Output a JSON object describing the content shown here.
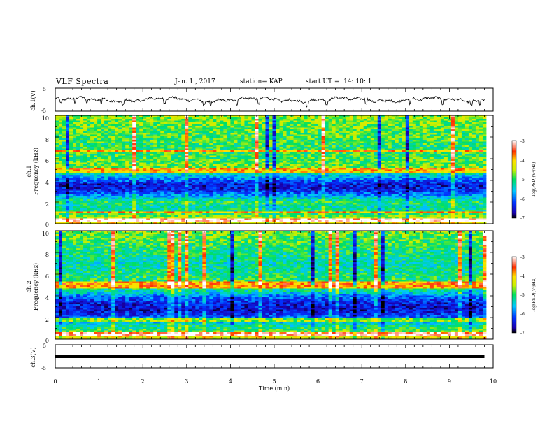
{
  "header": {
    "title": "VLF Spectra",
    "date": "Jan. 1 , 2017",
    "station": "station= KAP",
    "start_time": "start UT =  14: 10: 1"
  },
  "chart_data": [
    {
      "type": "line",
      "name": "ch1-waveform",
      "ylabel": "ch.1(V)",
      "ylim": [
        -5,
        5
      ],
      "yticklabels": [
        "5",
        "-5"
      ],
      "x_range": [
        0,
        10
      ],
      "data_extent_min": 9.8,
      "baseline_v": 0.0,
      "amplitude_v": 1.2,
      "dip_times_min": [
        0.13,
        0.45,
        0.72,
        1.05,
        1.55,
        2.5,
        3.4,
        3.55,
        4.15,
        4.65,
        5.75,
        6.2,
        7.1,
        8.1,
        8.85,
        9.5,
        9.7
      ]
    },
    {
      "type": "heatmap",
      "name": "ch1-spectrogram",
      "ylabel": "ch.1",
      "ylabel2": "Frequency (kHz)",
      "ylim": [
        0,
        10
      ],
      "yticklabels": [
        "0",
        "2",
        "4",
        "6",
        "8",
        "10"
      ],
      "x_range": [
        0,
        10
      ],
      "colorbar": {
        "label": "log(PSD)(V²/Hz)",
        "range": [
          -7,
          -3
        ],
        "ticklabels": [
          "-3",
          "-4",
          "-5",
          "-6",
          "-7"
        ]
      },
      "freq_profile_khz": [
        {
          "f": 0.0,
          "v": -4.3
        },
        {
          "f": 0.3,
          "v": -3.9
        },
        {
          "f": 0.6,
          "v": -4.6
        },
        {
          "f": 1.0,
          "v": -5.0
        },
        {
          "f": 1.5,
          "v": -5.3
        },
        {
          "f": 2.0,
          "v": -5.0
        },
        {
          "f": 2.5,
          "v": -5.6
        },
        {
          "f": 3.0,
          "v": -6.3
        },
        {
          "f": 3.6,
          "v": -6.5
        },
        {
          "f": 4.2,
          "v": -5.8
        },
        {
          "f": 4.8,
          "v": -5.2
        },
        {
          "f": 5.3,
          "v": -4.7
        },
        {
          "f": 6.0,
          "v": -4.9
        },
        {
          "f": 7.0,
          "v": -5.0
        },
        {
          "f": 8.0,
          "v": -4.9
        },
        {
          "f": 9.0,
          "v": -4.8
        },
        {
          "f": 10.0,
          "v": -4.6
        }
      ],
      "bright_lines_khz": [
        0.35,
        1.05,
        4.75,
        5.0,
        6.7
      ]
    },
    {
      "type": "heatmap",
      "name": "ch2-spectrogram",
      "ylabel": "ch.2",
      "ylabel2": "Frequency (kHz)",
      "ylim": [
        0,
        10
      ],
      "yticklabels": [
        "0",
        "2",
        "4",
        "6",
        "8",
        "10"
      ],
      "x_range": [
        0,
        10
      ],
      "colorbar": {
        "label": "log(PSD)(V²/Hz)",
        "range": [
          -7,
          -3
        ],
        "ticklabels": [
          "-3",
          "-4",
          "-5",
          "-6",
          "-7"
        ]
      },
      "freq_profile_khz": [
        {
          "f": 0.0,
          "v": -4.4
        },
        {
          "f": 0.4,
          "v": -4.1
        },
        {
          "f": 0.8,
          "v": -4.9
        },
        {
          "f": 1.3,
          "v": -5.3
        },
        {
          "f": 2.0,
          "v": -6.0
        },
        {
          "f": 2.6,
          "v": -6.5
        },
        {
          "f": 3.3,
          "v": -6.4
        },
        {
          "f": 3.9,
          "v": -6.0
        },
        {
          "f": 4.5,
          "v": -5.2
        },
        {
          "f": 5.0,
          "v": -4.9
        },
        {
          "f": 6.0,
          "v": -5.1
        },
        {
          "f": 7.0,
          "v": -5.3
        },
        {
          "f": 8.0,
          "v": -5.1
        },
        {
          "f": 9.0,
          "v": -4.9
        },
        {
          "f": 10.0,
          "v": -4.7
        }
      ],
      "bright_lines_khz": [
        0.45,
        1.8,
        4.8,
        5.2
      ]
    },
    {
      "type": "line",
      "name": "ch3-waveform",
      "ylabel": "ch.3(V)",
      "ylim": [
        -5,
        5
      ],
      "yticklabels": [
        "5",
        "-5"
      ],
      "x_range": [
        0,
        10
      ],
      "data_extent_min": 9.8,
      "level_v": 0.0,
      "xlabel": "Time (min)",
      "xticklabels": [
        "0",
        "1",
        "2",
        "3",
        "4",
        "5",
        "6",
        "7",
        "8",
        "9",
        "10"
      ]
    }
  ]
}
